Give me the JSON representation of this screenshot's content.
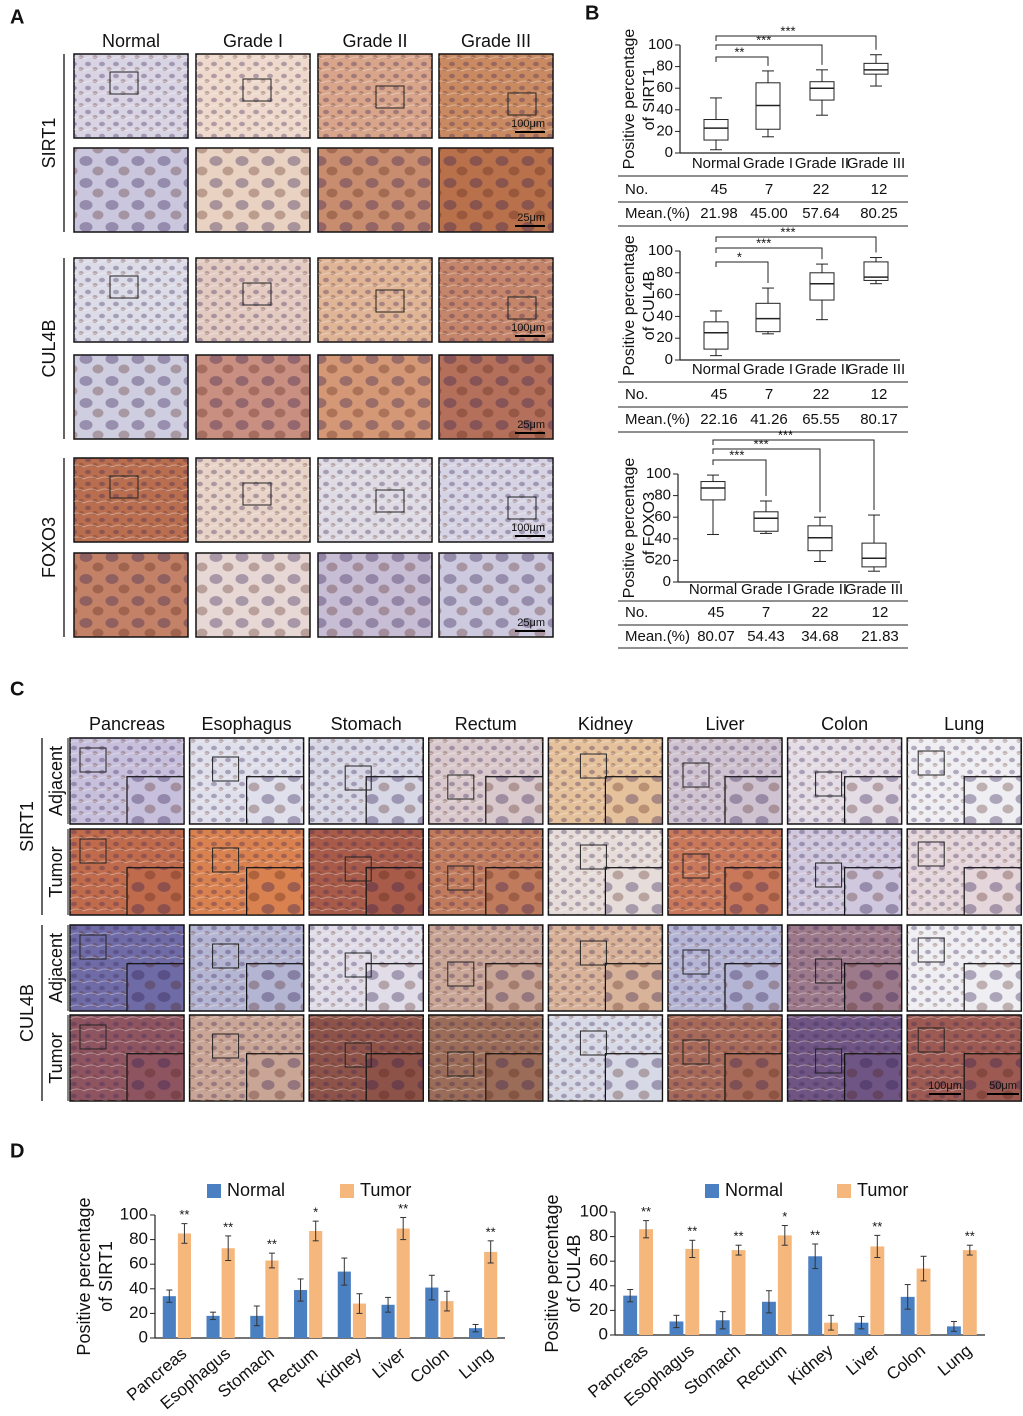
{
  "panel_labels": [
    "A",
    "B",
    "C",
    "D"
  ],
  "panel_a": {
    "columns": [
      "Normal",
      "Grade I",
      "Grade II",
      "Grade III"
    ],
    "rows": [
      "SIRT1",
      "CUL4B",
      "FOXO3"
    ],
    "scale_bars": [
      "100μm",
      "25μm"
    ]
  },
  "panel_c": {
    "columns": [
      "Pancreas",
      "Esophagus",
      "Stomach",
      "Rectum",
      "Kidney",
      "Liver",
      "Colon",
      "Lung"
    ],
    "markers": [
      "SIRT1",
      "CUL4B"
    ],
    "tissue_rows": [
      "Adjacent",
      "Tumor"
    ],
    "scale_bars": [
      "100μm",
      "50μm"
    ]
  },
  "chart_data": [
    {
      "type": "box",
      "ylabel": [
        "Positive percentage",
        "of  SIRT1"
      ],
      "categories": [
        "Normal",
        "Grade I",
        "Grade II",
        "Grade III"
      ],
      "boxes": [
        {
          "min": 3,
          "q1": 12,
          "median": 23,
          "q3": 31,
          "max": 51
        },
        {
          "min": 15,
          "q1": 22,
          "median": 44,
          "q3": 65,
          "max": 76
        },
        {
          "min": 35,
          "q1": 49,
          "median": 60,
          "q3": 66,
          "max": 77
        },
        {
          "min": 62,
          "q1": 73,
          "median": 77,
          "q3": 83,
          "max": 91
        }
      ],
      "ylim": [
        0,
        100
      ],
      "yticks": [
        0,
        20,
        40,
        60,
        80,
        100
      ],
      "significance": [
        null,
        "**",
        "***",
        "***"
      ],
      "table": {
        "rows": [
          [
            "No.",
            "45",
            "7",
            "22",
            "12"
          ],
          [
            "Mean.(%)",
            "21.98",
            "45.00",
            "57.64",
            "80.25"
          ]
        ]
      }
    },
    {
      "type": "box",
      "ylabel": [
        "Positive percentage",
        "of  CUL4B"
      ],
      "categories": [
        "Normal",
        "Grade I",
        "Grade II",
        "Grade III"
      ],
      "boxes": [
        {
          "min": 4,
          "q1": 10,
          "median": 25,
          "q3": 35,
          "max": 45
        },
        {
          "min": 24,
          "q1": 26,
          "median": 38,
          "q3": 52,
          "max": 66
        },
        {
          "min": 37,
          "q1": 55,
          "median": 70,
          "q3": 80,
          "max": 88
        },
        {
          "min": 70,
          "q1": 73,
          "median": 76,
          "q3": 90,
          "max": 94
        }
      ],
      "ylim": [
        0,
        100
      ],
      "yticks": [
        0,
        20,
        40,
        60,
        80,
        100
      ],
      "significance": [
        null,
        "*",
        "***",
        "***"
      ],
      "table": {
        "rows": [
          [
            "No.",
            "45",
            "7",
            "22",
            "12"
          ],
          [
            "Mean.(%)",
            "22.16",
            "41.26",
            "65.55",
            "80.17"
          ]
        ]
      }
    },
    {
      "type": "box",
      "ylabel": [
        "Positive percentage",
        "of  FOXO3"
      ],
      "categories": [
        "Normal",
        "Grade I",
        "Grade II",
        "Grade III"
      ],
      "boxes": [
        {
          "min": 44,
          "q1": 76,
          "median": 87,
          "q3": 93,
          "max": 99
        },
        {
          "min": 45,
          "q1": 47,
          "median": 59,
          "q3": 65,
          "max": 75
        },
        {
          "min": 19,
          "q1": 29,
          "median": 41,
          "q3": 52,
          "max": 60
        },
        {
          "min": 10,
          "q1": 14,
          "median": 22,
          "q3": 36,
          "max": 62
        }
      ],
      "ylim": [
        0,
        100
      ],
      "yticks": [
        0,
        20,
        40,
        60,
        80,
        100
      ],
      "significance": [
        null,
        "***",
        "***",
        "***"
      ],
      "table": {
        "rows": [
          [
            "No.",
            "45",
            "7",
            "22",
            "12"
          ],
          [
            "Mean.(%)",
            "80.07",
            "54.43",
            "34.68",
            "21.83"
          ]
        ]
      }
    },
    {
      "type": "bar",
      "ylabel": [
        "Positive percentage",
        "of  SIRT1"
      ],
      "categories": [
        "Pancreas",
        "Esophagus",
        "Stomach",
        "Rectum",
        "Kidney",
        "Liver",
        "Colon",
        "Lung"
      ],
      "series": [
        {
          "name": "Normal",
          "color": "#4a7fc1",
          "values": [
            34,
            18,
            18,
            39,
            54,
            27,
            41,
            8
          ],
          "errors": [
            5,
            3,
            8,
            9,
            11,
            6,
            10,
            3
          ]
        },
        {
          "name": "Tumor",
          "color": "#f5b77c",
          "values": [
            85,
            73,
            63,
            87,
            28,
            89,
            30,
            70
          ],
          "errors": [
            8,
            10,
            6,
            8,
            8,
            9,
            8,
            9
          ]
        }
      ],
      "ylim": [
        0,
        100
      ],
      "yticks": [
        0,
        20,
        40,
        60,
        80,
        100
      ],
      "significance": [
        "**",
        "**",
        "**",
        "*",
        null,
        "**",
        null,
        "**"
      ],
      "legend": "top"
    },
    {
      "type": "bar",
      "ylabel": [
        "Positive percentage",
        "of  CUL4B"
      ],
      "categories": [
        "Pancreas",
        "Esophagus",
        "Stomach",
        "Rectum",
        "Kidney",
        "Liver",
        "Colon",
        "Lung"
      ],
      "series": [
        {
          "name": "Normal",
          "color": "#4a7fc1",
          "values": [
            32,
            11,
            12,
            27,
            64,
            10,
            31,
            7
          ],
          "errors": [
            5,
            5,
            7,
            9,
            10,
            5,
            10,
            4
          ]
        },
        {
          "name": "Tumor",
          "color": "#f5b77c",
          "values": [
            86,
            70,
            69,
            81,
            10,
            72,
            54,
            69
          ],
          "errors": [
            7,
            7,
            4,
            8,
            6,
            9,
            10,
            4
          ]
        }
      ],
      "ylim": [
        0,
        100
      ],
      "yticks": [
        0,
        20,
        40,
        60,
        80,
        100
      ],
      "significance": [
        "**",
        "**",
        "**",
        "*",
        "**",
        "**",
        null,
        "**"
      ],
      "legend": "top"
    }
  ]
}
